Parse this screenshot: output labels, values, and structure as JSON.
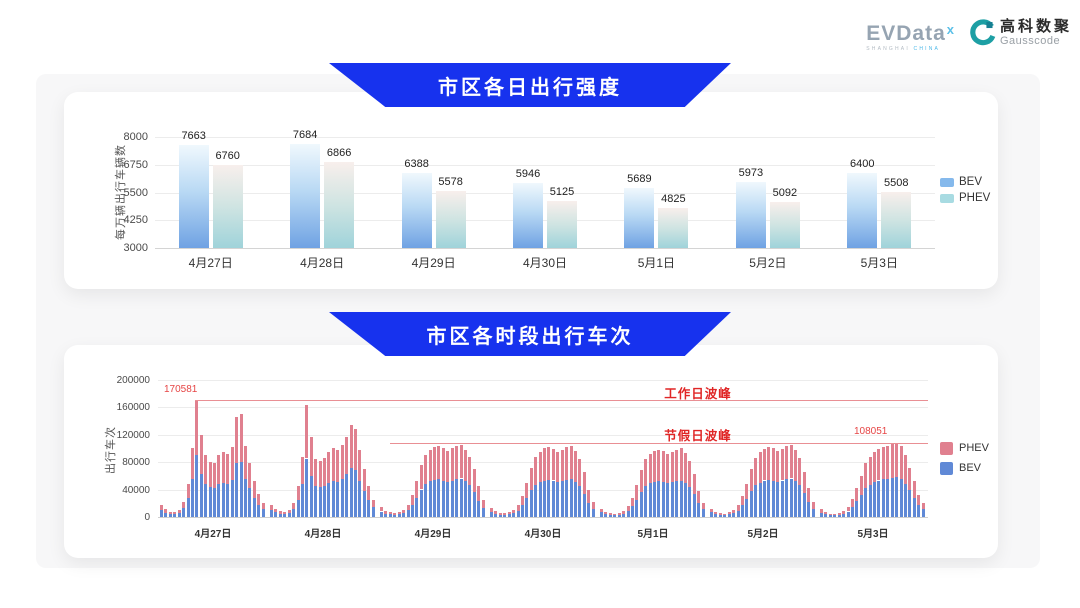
{
  "header": {
    "evdata": {
      "name": "EVData",
      "superscript": "x",
      "subtext_left": "SHANGHAI",
      "subtext_right": "CHINA"
    },
    "gausscode": {
      "cn": "高科数聚",
      "en": "Gausscode",
      "icon": "gausscode-g-icon"
    }
  },
  "colors": {
    "banner_blue": "#1732ee",
    "bev_blue": "#6089d6",
    "phev_pink": "#e0808f",
    "bev_gradient_top": "#f0f8fd",
    "bev_gradient_mid": "#b9d9f4",
    "bev_gradient_bottom": "#6fa2e3",
    "phev_gradient_top": "#f8efec",
    "phev_gradient_mid": "#cfe4e2",
    "phev_gradient_bottom": "#9fd3da",
    "legend_bev_light": "#85b9ec",
    "legend_phev_light": "#a8dbe2",
    "peak_line_red": "#e98f94",
    "peak_label_red": "#e02626",
    "annotation_red": "#e64545",
    "grid_gray": "#ececec",
    "axis_gray": "#d4d4d4",
    "tick_text": "#4a4a4a"
  },
  "chart_data": [
    {
      "type": "bar",
      "title": "市区各日出行强度",
      "ylabel": "每万辆出行车辆数",
      "categories": [
        "4月27日",
        "4月28日",
        "4月29日",
        "4月30日",
        "5月1日",
        "5月2日",
        "5月3日"
      ],
      "series": [
        {
          "name": "BEV",
          "values": [
            7663,
            7684,
            6388,
            5946,
            5689,
            5973,
            6400
          ]
        },
        {
          "name": "PHEV",
          "values": [
            6760,
            6866,
            5578,
            5125,
            4825,
            5092,
            5508
          ]
        }
      ],
      "yticks": [
        3000,
        4250,
        5500,
        6750,
        8000
      ],
      "ylim": [
        3000,
        8000
      ],
      "grid": true,
      "legend": [
        "BEV",
        "PHEV"
      ],
      "legend_position": "right"
    },
    {
      "type": "stacked-bar",
      "title": "市区各时段出行车次",
      "ylabel": "出行车次",
      "yticks": [
        0,
        40000,
        80000,
        120000,
        160000,
        200000
      ],
      "ylim": [
        0,
        200000
      ],
      "grid": true,
      "legend": [
        "PHEV",
        "BEV"
      ],
      "legend_position": "right",
      "hours_per_day": 24,
      "annotations": [
        {
          "id": "workday",
          "label": "工作日波峰",
          "value": 170581,
          "value_label": "170581"
        },
        {
          "id": "holiday",
          "label": "节假日波峰",
          "value": 108051,
          "value_label": "108051"
        }
      ],
      "days": [
        {
          "label": "4月27日",
          "bev": [
            10000,
            6000,
            5000,
            4000,
            6000,
            13000,
            27000,
            55000,
            90000,
            62000,
            48000,
            43000,
            42000,
            48000,
            50000,
            48000,
            54000,
            78000,
            80000,
            55000,
            42000,
            28000,
            18000,
            11000
          ],
          "phev": [
            7000,
            5000,
            3000,
            3000,
            4000,
            9000,
            21000,
            46000,
            80581,
            57000,
            42000,
            37000,
            36000,
            42000,
            44000,
            43000,
            48000,
            68000,
            70000,
            49000,
            36000,
            24000,
            15000,
            9000
          ]
        },
        {
          "label": "4月28日",
          "bev": [
            10000,
            7000,
            5000,
            4000,
            6000,
            11000,
            25000,
            48000,
            85000,
            60000,
            45000,
            43000,
            45000,
            50000,
            53000,
            51000,
            55000,
            62000,
            71000,
            68000,
            52000,
            38000,
            25000,
            14000
          ],
          "phev": [
            8000,
            5000,
            4000,
            4000,
            4000,
            9000,
            20000,
            40000,
            78000,
            57000,
            40000,
            39000,
            41000,
            45000,
            47000,
            46000,
            50000,
            54000,
            63000,
            60000,
            46000,
            32000,
            20000,
            11000
          ]
        },
        {
          "label": "4月29日",
          "bev": [
            8000,
            5000,
            4000,
            3000,
            4000,
            6000,
            10000,
            18000,
            28000,
            40000,
            48000,
            52000,
            54000,
            55000,
            53000,
            51000,
            53000,
            55000,
            56000,
            52000,
            46000,
            36000,
            23000,
            13000
          ],
          "phev": [
            6000,
            4000,
            3000,
            3000,
            3000,
            4000,
            8000,
            14000,
            24000,
            35000,
            42000,
            46000,
            48000,
            49000,
            47000,
            45000,
            47000,
            48000,
            49000,
            46000,
            42000,
            34000,
            22000,
            12000
          ]
        },
        {
          "label": "4月30日",
          "bev": [
            7000,
            5000,
            3000,
            3000,
            4000,
            6000,
            9000,
            17000,
            27000,
            39000,
            47000,
            51000,
            53000,
            54000,
            53000,
            51000,
            52000,
            54000,
            56000,
            51000,
            45000,
            34000,
            21000,
            12000
          ],
          "phev": [
            6000,
            4000,
            3000,
            3000,
            3000,
            4000,
            8000,
            13000,
            23000,
            33000,
            41000,
            44000,
            47000,
            48000,
            46000,
            44000,
            46000,
            48000,
            48000,
            45000,
            40000,
            31000,
            19000,
            10000
          ]
        },
        {
          "label": "5月1日",
          "bev": [
            7000,
            4000,
            3000,
            3000,
            3000,
            5000,
            9000,
            16000,
            25000,
            37000,
            45000,
            49000,
            51000,
            52000,
            51000,
            49000,
            51000,
            52000,
            53000,
            50000,
            44000,
            33000,
            20000,
            11000
          ],
          "phev": [
            5000,
            4000,
            3000,
            2000,
            3000,
            4000,
            7000,
            12000,
            21000,
            31000,
            39000,
            43000,
            45000,
            46000,
            45000,
            43000,
            44000,
            46000,
            47000,
            43000,
            38000,
            29000,
            18000,
            9000
          ]
        },
        {
          "label": "5月2日",
          "bev": [
            7000,
            4000,
            3000,
            3000,
            4000,
            6000,
            9000,
            17000,
            26000,
            38000,
            46000,
            50000,
            53000,
            54000,
            53000,
            51000,
            53000,
            55000,
            56000,
            52000,
            46000,
            35000,
            22000,
            12000
          ],
          "phev": [
            5000,
            4000,
            3000,
            2000,
            3000,
            4000,
            8000,
            13000,
            22000,
            32000,
            40000,
            44000,
            46000,
            48000,
            47000,
            45000,
            46000,
            48000,
            49000,
            45000,
            40000,
            31000,
            20000,
            10000
          ]
        },
        {
          "label": "5月3日",
          "bev": [
            6000,
            4000,
            3000,
            3000,
            3000,
            5000,
            8000,
            14000,
            23000,
            32000,
            42000,
            47000,
            51000,
            53000,
            55000,
            56000,
            57000,
            58000,
            55000,
            48000,
            39000,
            28000,
            17000,
            11000
          ],
          "phev": [
            5000,
            3000,
            2000,
            2000,
            3000,
            4000,
            7000,
            12000,
            19000,
            28000,
            36000,
            41000,
            44000,
            46000,
            47000,
            48000,
            49000,
            50051,
            48000,
            42000,
            33000,
            24000,
            15000,
            9000
          ]
        }
      ]
    }
  ]
}
